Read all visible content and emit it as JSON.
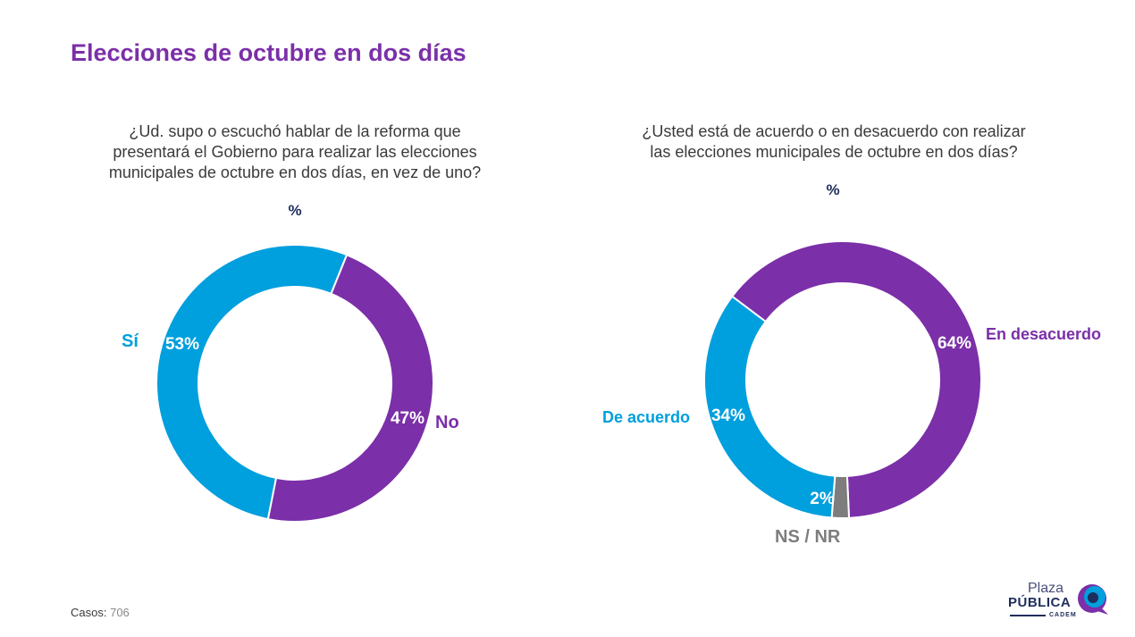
{
  "title": "Elecciones de octubre en dos días",
  "footer": {
    "casos_label": "Casos",
    "casos_value": "706"
  },
  "logo": {
    "line1": "Plaza",
    "line2": "PÚBLICA",
    "line3": "CADEM"
  },
  "colors": {
    "purple": "#7b2fa8",
    "blue": "#009fdd",
    "gray": "#7d7d7d",
    "navy": "#1f2d5c"
  },
  "chart_data": [
    {
      "type": "pie",
      "title": "¿Ud. supo o escuchó hablar de la reforma que presentará el Gobierno para realizar las elecciones municipales de octubre en dos días, en vez de uno?",
      "unit": "%",
      "categories": [
        "Sí",
        "No"
      ],
      "values": [
        53,
        47
      ],
      "value_labels": [
        "53%",
        "47%"
      ],
      "colors": [
        "#009fdd",
        "#7b2fa8"
      ]
    },
    {
      "type": "pie",
      "title": "¿Usted está de acuerdo o en desacuerdo con realizar las elecciones municipales de octubre en dos días?",
      "unit": "%",
      "categories": [
        "En desacuerdo",
        "NS / NR",
        "De acuerdo"
      ],
      "values": [
        64,
        2,
        34
      ],
      "value_labels": [
        "64%",
        "2%",
        "34%"
      ],
      "colors": [
        "#7b2fa8",
        "#7d7d7d",
        "#009fdd"
      ]
    }
  ]
}
